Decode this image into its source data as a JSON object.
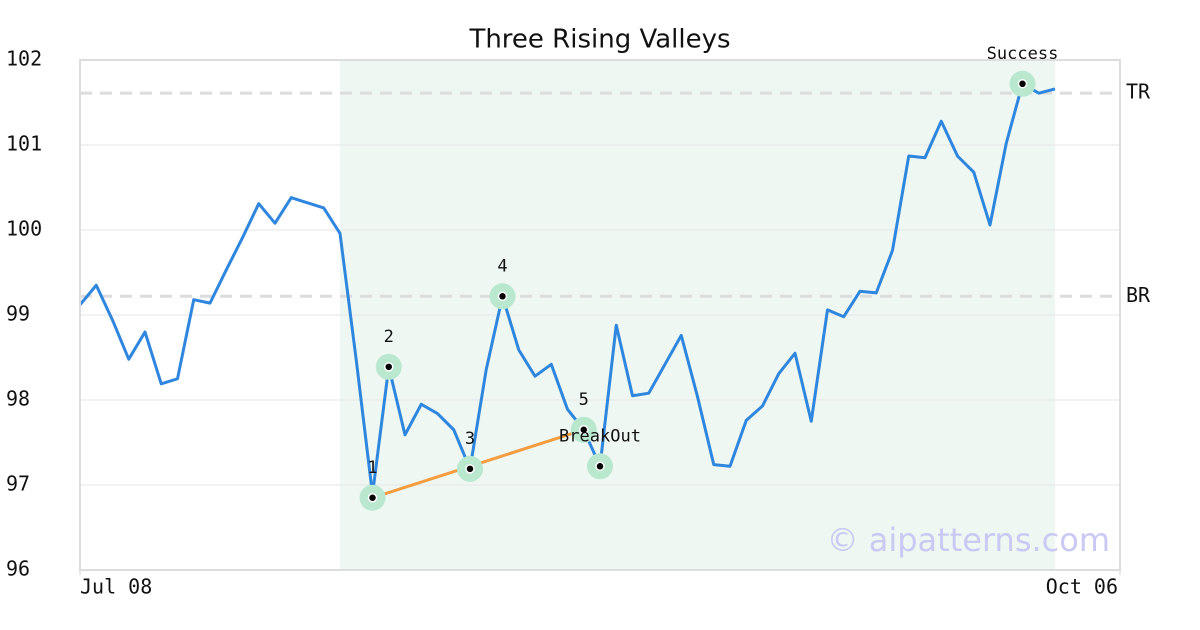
{
  "chart_data": {
    "type": "line",
    "title": "Three Rising Valleys",
    "x": [
      0,
      1,
      2,
      3,
      4,
      5,
      6,
      7,
      8,
      9,
      10,
      11,
      12,
      13,
      14,
      15,
      16,
      17,
      18,
      19,
      20,
      21,
      22,
      23,
      24,
      25,
      26,
      27,
      28,
      29,
      30,
      31,
      32,
      33,
      34,
      35,
      36,
      37,
      38,
      39,
      40,
      41,
      42,
      43,
      44,
      45,
      46,
      47,
      48,
      49,
      50,
      51,
      52,
      53,
      54,
      55,
      56,
      57,
      58,
      59,
      60
    ],
    "series": [
      {
        "color": "#2e86de",
        "values": [
          99.12,
          99.35,
          98.94,
          98.48,
          98.8,
          98.19,
          98.25,
          99.18,
          99.14,
          99.53,
          99.91,
          100.31,
          100.08,
          100.38,
          100.32,
          100.26,
          99.96,
          98.47,
          96.89,
          98.39,
          97.59,
          97.95,
          97.84,
          97.65,
          97.19,
          98.36,
          99.22,
          98.59,
          98.28,
          98.42,
          97.89,
          97.65,
          97.22,
          98.88,
          98.05,
          98.08,
          98.42,
          98.76,
          98.04,
          97.24,
          97.22,
          97.76,
          97.93,
          98.31,
          98.55,
          97.75,
          99.06,
          98.98,
          99.28,
          99.26,
          99.76,
          100.87,
          100.85,
          101.28,
          100.87,
          100.68,
          100.06,
          101.02,
          101.72,
          101.61,
          101.66
        ]
      }
    ],
    "xlim": [
      0,
      64
    ],
    "xticks": [
      {
        "value": 0,
        "label": "Jul 08"
      },
      {
        "value": 64,
        "label": "Oct 06"
      }
    ],
    "ylim": [
      96,
      102
    ],
    "yticks": [
      96,
      97,
      98,
      99,
      100,
      101,
      102
    ],
    "grid": true,
    "highlight_range": [
      16,
      60
    ],
    "highlight_color": "#eef7f2",
    "reference_lines": [
      {
        "label": "TR",
        "value": 101.61
      },
      {
        "label": "BR",
        "value": 99.22
      }
    ],
    "trendline": {
      "color": "#f39c40",
      "x": [
        18,
        31
      ],
      "values": [
        96.85,
        97.65
      ]
    },
    "annotations": [
      {
        "label": "1",
        "x": 18,
        "y": 96.85
      },
      {
        "label": "2",
        "x": 19,
        "y": 98.39
      },
      {
        "label": "3",
        "x": 24,
        "y": 97.19
      },
      {
        "label": "4",
        "x": 26,
        "y": 99.22
      },
      {
        "label": "5",
        "x": 31,
        "y": 97.65
      },
      {
        "label": "BreakOut",
        "x": 32,
        "y": 97.22
      },
      {
        "label": "Success",
        "x": 58,
        "y": 101.72
      }
    ],
    "marker_color": "#b9e8cf",
    "watermark": "© aipatterns.com"
  }
}
